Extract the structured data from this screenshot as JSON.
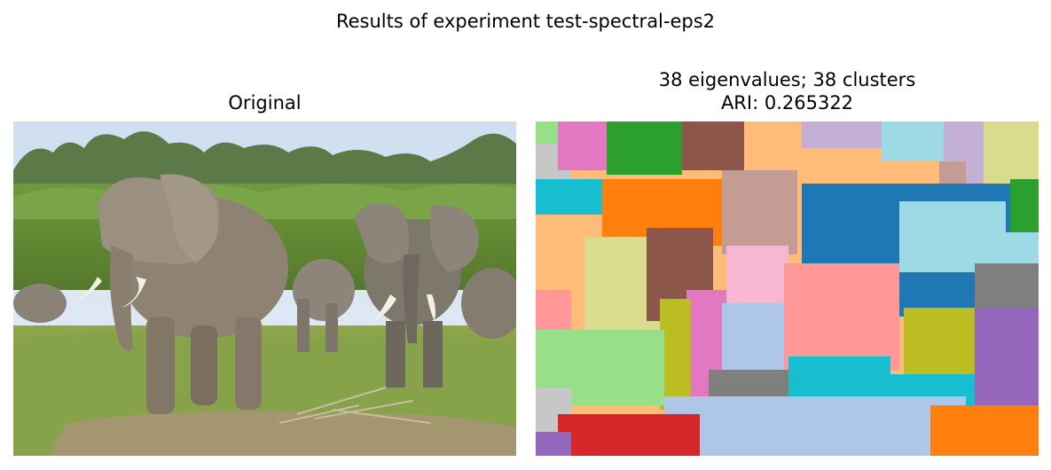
{
  "figure": {
    "suptitle": "Results of experiment test-spectral-eps2"
  },
  "left_panel": {
    "title": "Original"
  },
  "right_panel": {
    "title_line1": "38 eigenvalues; 38 clusters",
    "title_line2": "ARI: 0.265322"
  },
  "palette": {
    "blue": "#1f77b4",
    "light_blue": "#aec7e8",
    "orange": "#ff7f0e",
    "light_orange": "#ffbb78",
    "green": "#2ca02c",
    "light_green": "#98df8a",
    "red": "#d62728",
    "pink_red": "#ff9896",
    "purple": "#9467bd",
    "lavender": "#c5b0d5",
    "brown": "#8c564b",
    "tan": "#c49c94",
    "magenta": "#e377c2",
    "light_pink": "#f7b6d2",
    "gray": "#7f7f7f",
    "light_gray": "#c7c7c7",
    "olive": "#bcbd22",
    "khaki": "#dbdb8d",
    "cyan": "#17becf",
    "light_cyan": "#9edae5"
  }
}
